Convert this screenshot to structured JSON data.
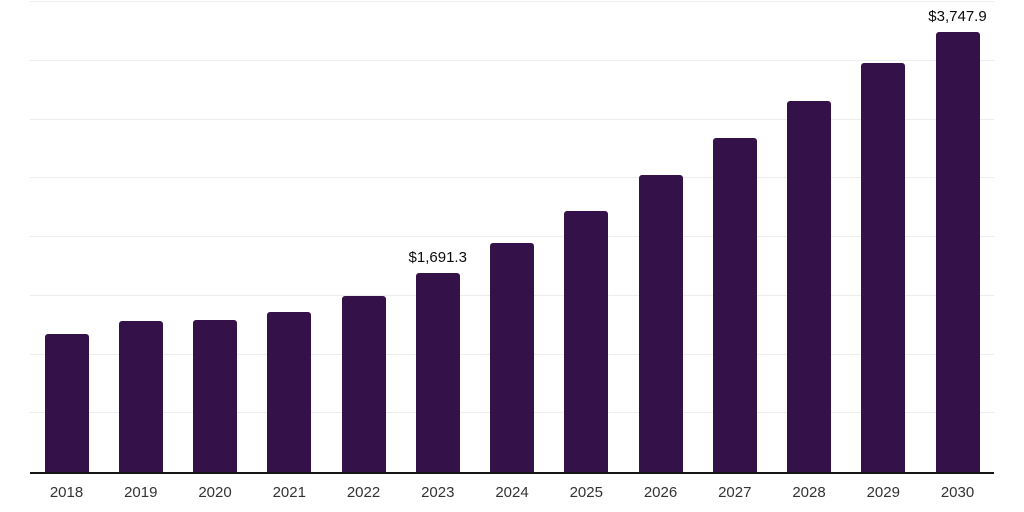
{
  "chart_data": {
    "type": "bar",
    "title": "",
    "xlabel": "",
    "ylabel": "",
    "categories": [
      "2018",
      "2019",
      "2020",
      "2021",
      "2022",
      "2023",
      "2024",
      "2025",
      "2026",
      "2027",
      "2028",
      "2029",
      "2030"
    ],
    "values": [
      1175,
      1285,
      1292,
      1360,
      1498,
      1691.3,
      1950,
      2225,
      2531,
      2842,
      3160,
      3477,
      3747.9
    ],
    "bar_labels": [
      null,
      null,
      null,
      null,
      null,
      "$1,691.3",
      null,
      null,
      null,
      null,
      null,
      null,
      "$3,747.9"
    ],
    "ylim": [
      0,
      4000
    ],
    "y_gridline_step": 500,
    "grid": true,
    "y_tick_labels_visible": false,
    "legend_position": "none"
  },
  "colors": {
    "background": "#ffffff",
    "bar": "#351149",
    "gridline": "#ededed",
    "axis_line": "#161616",
    "tick_label": "#333333",
    "data_label": "#0a0a0a"
  }
}
